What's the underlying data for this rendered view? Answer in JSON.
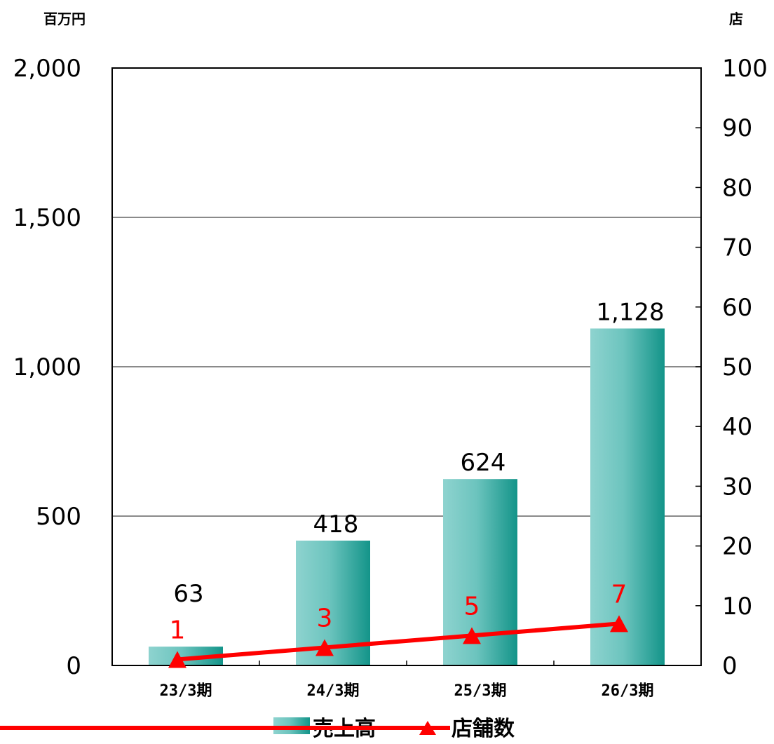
{
  "chart_data": {
    "type": "bar",
    "categories": [
      "23/3期",
      "24/3期",
      "25/3期",
      "26/3期"
    ],
    "series": [
      {
        "name": "売上高",
        "type": "bar",
        "axis": "left",
        "values": [
          63,
          418,
          624,
          1128
        ],
        "color": "#1a9a92"
      },
      {
        "name": "店舗数",
        "type": "line",
        "axis": "right",
        "values": [
          1,
          3,
          5,
          7
        ],
        "color": "#ff0000",
        "marker": "triangle"
      }
    ],
    "y_left": {
      "unit": "百万円",
      "ylim": [
        0,
        2000
      ],
      "ticks": [
        "0",
        "500",
        "1,000",
        "1,500",
        "2,000"
      ]
    },
    "y_right": {
      "unit": "店",
      "ylim": [
        0,
        100
      ],
      "ticks": [
        "0",
        "10",
        "20",
        "30",
        "40",
        "50",
        "60",
        "70",
        "80",
        "90",
        "100"
      ]
    },
    "bar_labels": [
      "63",
      "418",
      "624",
      "1,128"
    ],
    "line_labels": [
      "1",
      "3",
      "5",
      "7"
    ],
    "grid": true,
    "legend_position": "bottom"
  }
}
